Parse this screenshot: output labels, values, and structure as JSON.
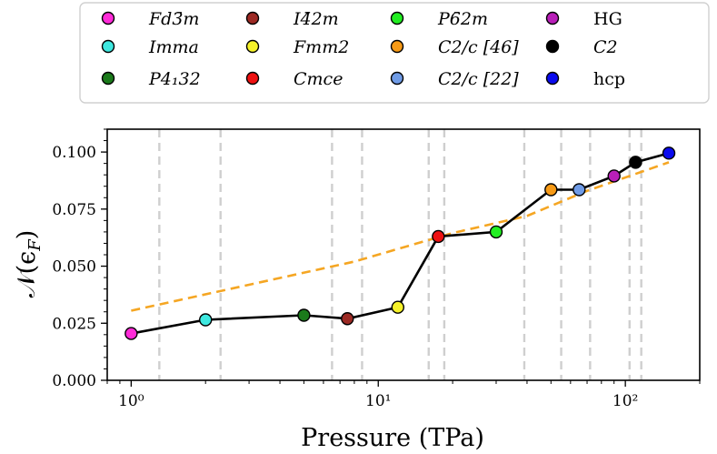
{
  "chart_data": {
    "type": "scatter",
    "xlabel": "Pressure (TPa)",
    "ylabel": "𝒩(ϵ_F)",
    "ylabel_main": "𝒩(ϵ",
    "ylabel_sub": "F",
    "ylabel_close": ")",
    "xscale": "log",
    "xlim": [
      0.8,
      200
    ],
    "ylim": [
      0.0,
      0.11
    ],
    "xticks": [
      {
        "value": 1,
        "label": "10⁰"
      },
      {
        "value": 10,
        "label": "10¹"
      },
      {
        "value": 100,
        "label": "10²"
      }
    ],
    "yticks": [
      {
        "value": 0.0,
        "label": "0.000"
      },
      {
        "value": 0.025,
        "label": "0.025"
      },
      {
        "value": 0.05,
        "label": "0.050"
      },
      {
        "value": 0.075,
        "label": "0.075"
      },
      {
        "value": 0.1,
        "label": "0.100"
      }
    ],
    "phase_boundaries": [
      1.3,
      2.3,
      6.5,
      8.6,
      16,
      18.5,
      39,
      55,
      72,
      104,
      116
    ],
    "series": [
      {
        "style": "solid-line-with-markers",
        "color": "#000000",
        "points": [
          {
            "x": 1.0,
            "y": 0.0205,
            "phase": "Fd-3m"
          },
          {
            "x": 2.0,
            "y": 0.0265,
            "phase": "Imma"
          },
          {
            "x": 5.0,
            "y": 0.0285,
            "phase": "P4_132"
          },
          {
            "x": 7.5,
            "y": 0.027,
            "phase": "I-42m"
          },
          {
            "x": 12.0,
            "y": 0.032,
            "phase": "Fmm2"
          },
          {
            "x": 17.5,
            "y": 0.063,
            "phase": "Cmce"
          },
          {
            "x": 30.0,
            "y": 0.065,
            "phase": "P-62m"
          },
          {
            "x": 50.0,
            "y": 0.0835,
            "phase": "C2/c [46]"
          },
          {
            "x": 65.0,
            "y": 0.0835,
            "phase": "C2/c [22]"
          },
          {
            "x": 90.0,
            "y": 0.0895,
            "phase": "HG"
          },
          {
            "x": 110.0,
            "y": 0.0955,
            "phase": "C2"
          },
          {
            "x": 150.0,
            "y": 0.0995,
            "phase": "hcp"
          }
        ]
      },
      {
        "style": "dashed-line",
        "color": "#f5a623",
        "points": [
          {
            "x": 1.0,
            "y": 0.0305
          },
          {
            "x": 8.0,
            "y": 0.052
          },
          {
            "x": 20.0,
            "y": 0.0645
          },
          {
            "x": 40.0,
            "y": 0.072
          },
          {
            "x": 70.0,
            "y": 0.083
          },
          {
            "x": 150.0,
            "y": 0.0955
          }
        ]
      }
    ],
    "legend": {
      "placement": "top",
      "columns": 4,
      "entries": [
        {
          "key": "Fd-3m",
          "label": "Fd3̄m",
          "color": "#ff2bd8",
          "italic": true
        },
        {
          "key": "Imma",
          "label": "Imma",
          "color": "#3ee8e0",
          "italic": true
        },
        {
          "key": "P4_132",
          "label": "P4₁32",
          "color": "#1b7a1b",
          "italic": true
        },
        {
          "key": "I-42m",
          "label": "I4̄2m",
          "color": "#9c2a24",
          "italic": true
        },
        {
          "key": "Fmm2",
          "label": "Fmm2",
          "color": "#f6f22a",
          "italic": true
        },
        {
          "key": "Cmce",
          "label": "Cmce",
          "color": "#ee1111",
          "italic": true
        },
        {
          "key": "P-62m",
          "label": "P6̄2m",
          "color": "#22ee22",
          "italic": true
        },
        {
          "key": "C2/c [46]",
          "label": "C2/c [46]",
          "color": "#f79a16",
          "italic": true
        },
        {
          "key": "C2/c [22]",
          "label": "C2/c [22]",
          "color": "#6f9be6",
          "italic": true
        },
        {
          "key": "HG",
          "label": "HG",
          "color": "#b81fb8",
          "italic": false
        },
        {
          "key": "C2",
          "label": "C2",
          "color": "#000000",
          "italic": true
        },
        {
          "key": "hcp",
          "label": "hcp",
          "color": "#0a0aee",
          "italic": false
        }
      ]
    }
  }
}
